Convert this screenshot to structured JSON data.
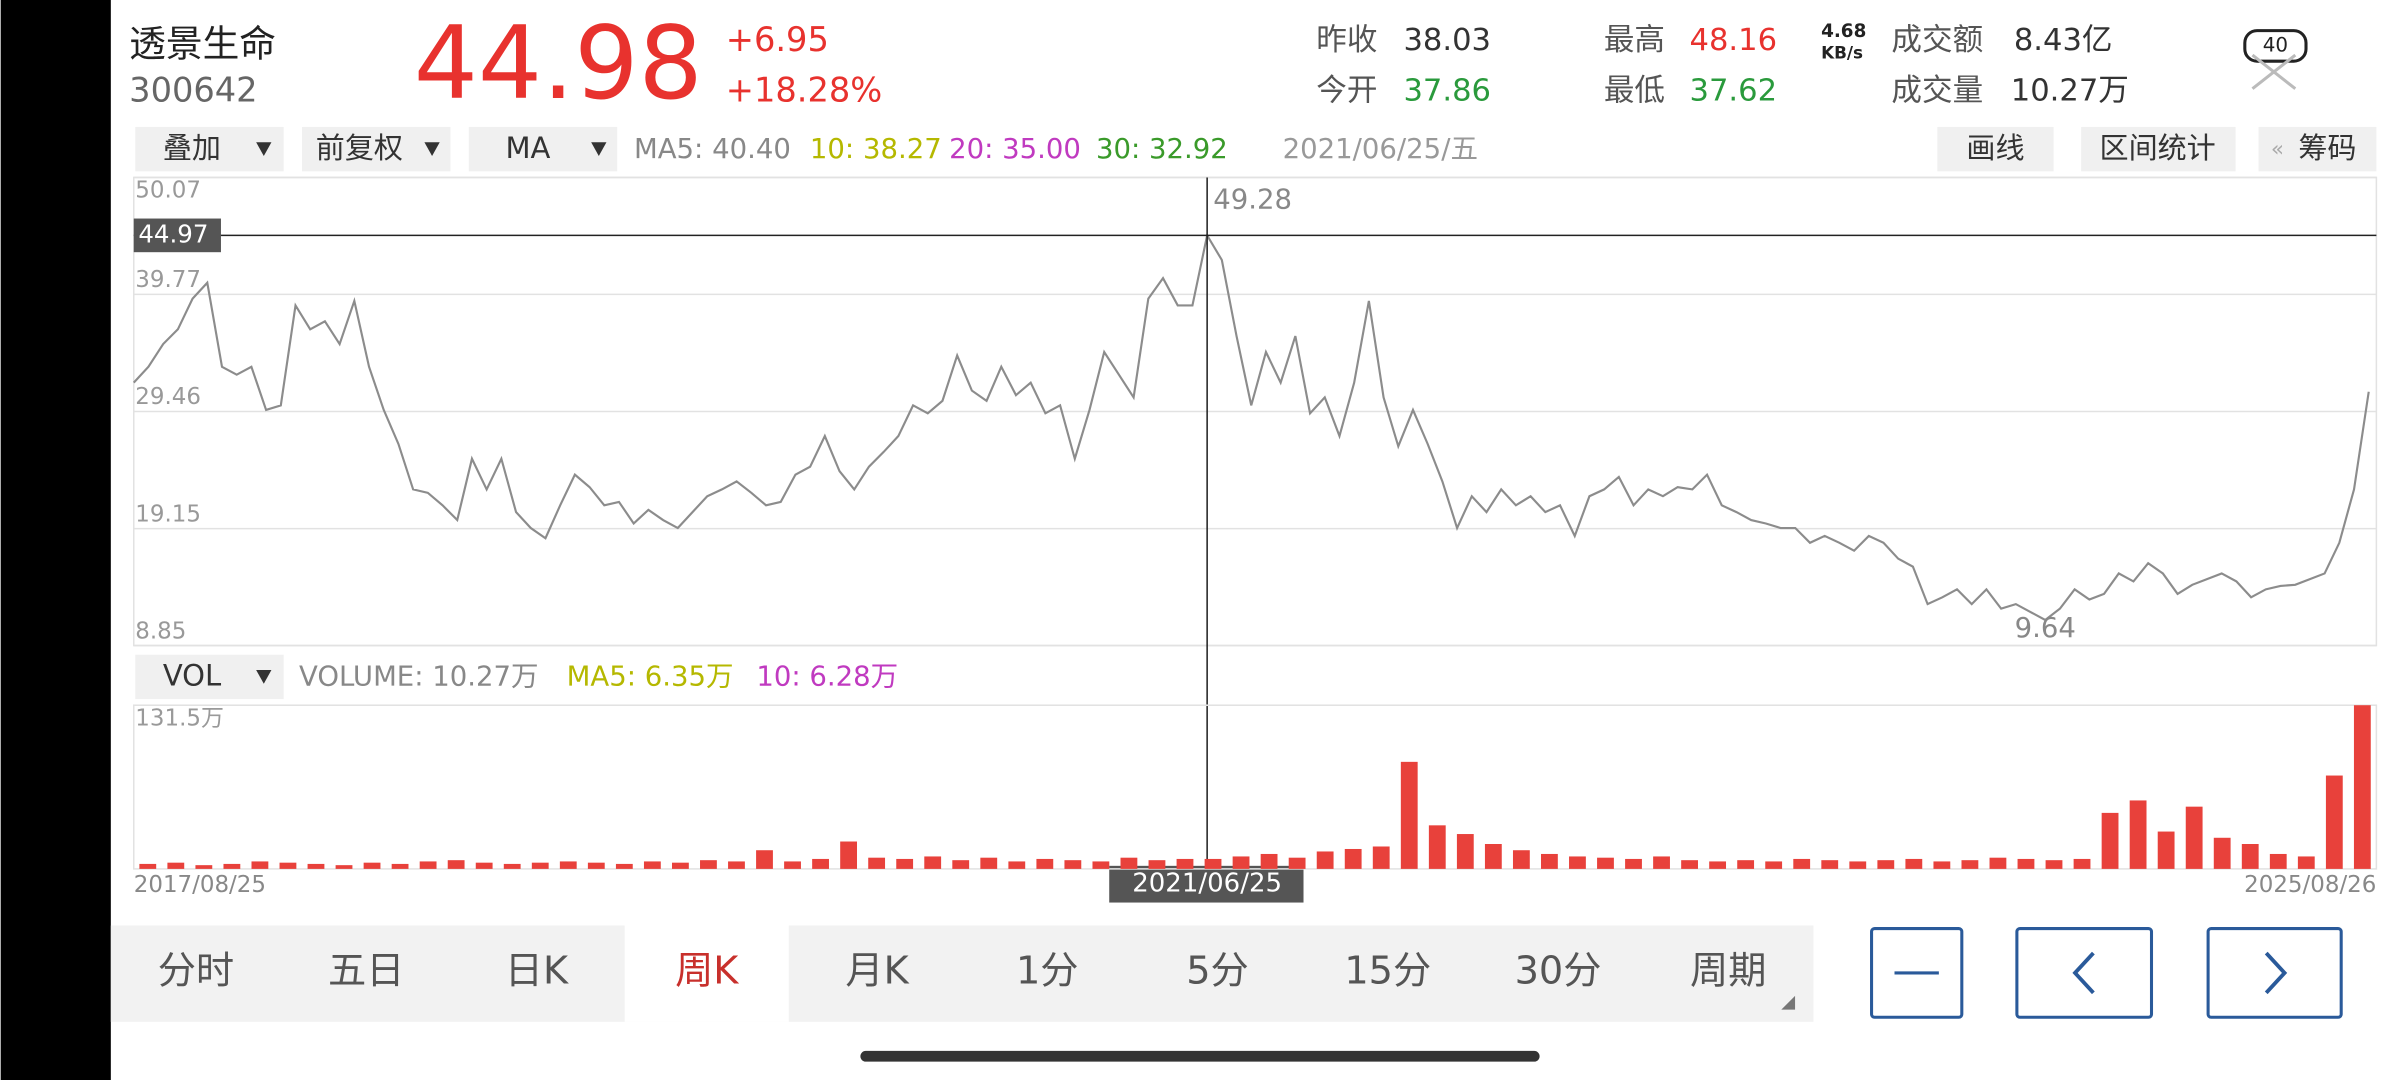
{
  "status_bar": {
    "speed": "4.68",
    "speed_unit": "KB/s",
    "battery": "40"
  },
  "header": {
    "name": "透景生命",
    "code": "300642",
    "price": "44.98",
    "change": "+6.95",
    "change_pct": "+18.28%",
    "stats": [
      {
        "label": "昨收",
        "value": "38.03"
      },
      {
        "label": "今开",
        "value": "37.86"
      },
      {
        "label": "最高",
        "value": "48.16"
      },
      {
        "label": "最低",
        "value": "37.62"
      },
      {
        "label": "成交额",
        "value": "8.43亿"
      },
      {
        "label": "成交量",
        "value": "10.27万"
      }
    ]
  },
  "toolbar": {
    "overlay": "叠加",
    "adjust": "前复权",
    "indicator": "MA",
    "ma": [
      "MA5: 40.40",
      "10: 38.27",
      "20: 35.00",
      "30: 32.92"
    ],
    "date": "2021/06/25/五",
    "buttons": [
      "画线",
      "区间统计",
      "筹码"
    ]
  },
  "chart_data": [
    {
      "type": "line",
      "ylim": [
        8.85,
        50.07
      ],
      "yticks": [
        8.85,
        19.15,
        29.46,
        39.77,
        50.07
      ],
      "grid": true,
      "color": "#8c8c8c",
      "crosshair_value": 44.97,
      "high_label": "49.28",
      "low_label": "9.64",
      "values": [
        32.0,
        33.4,
        35.4,
        36.7,
        39.4,
        40.8,
        33.4,
        32.7,
        33.4,
        29.6,
        30.0,
        38.8,
        36.7,
        37.4,
        35.4,
        39.2,
        33.4,
        29.6,
        26.6,
        22.6,
        22.3,
        21.2,
        19.9,
        25.3,
        22.6,
        25.3,
        20.6,
        19.2,
        18.3,
        21.2,
        23.9,
        22.8,
        21.2,
        21.5,
        19.6,
        20.8,
        19.9,
        19.2,
        20.6,
        22.0,
        22.6,
        23.3,
        22.3,
        21.2,
        21.5,
        23.9,
        24.6,
        27.3,
        24.2,
        22.6,
        24.6,
        25.9,
        27.3,
        30.0,
        29.3,
        30.4,
        34.4,
        31.3,
        30.4,
        33.4,
        30.9,
        32.0,
        29.3,
        30.0,
        25.3,
        29.6,
        34.7,
        32.7,
        30.7,
        39.4,
        41.2,
        38.8,
        38.8,
        44.97,
        42.8,
        36.1,
        30.0,
        34.7,
        32.0,
        36.1,
        29.3,
        30.7,
        27.3,
        32.0,
        39.2,
        30.7,
        26.4,
        29.6,
        26.6,
        23.3,
        19.2,
        22.0,
        20.6,
        22.6,
        21.2,
        22.0,
        20.6,
        21.2,
        18.5,
        22.0,
        22.6,
        23.7,
        21.2,
        22.6,
        22.0,
        22.8,
        22.6,
        23.9,
        21.2,
        20.6,
        19.9,
        19.6,
        19.2,
        19.2,
        17.9,
        18.5,
        17.9,
        17.2,
        18.5,
        17.9,
        16.5,
        15.8,
        12.5,
        13.1,
        13.8,
        12.5,
        13.8,
        12.1,
        12.5,
        11.8,
        11.1,
        12.1,
        13.8,
        12.9,
        13.4,
        15.2,
        14.5,
        16.1,
        15.2,
        13.4,
        14.2,
        14.7,
        15.2,
        14.5,
        13.1,
        13.8,
        14.1,
        14.2,
        14.7,
        15.2,
        17.9,
        22.6,
        31.2
      ]
    },
    {
      "type": "bar",
      "ylim": [
        0,
        131.5
      ],
      "yticks": [
        {
          "value": 131.5,
          "label": "131.5万"
        }
      ],
      "color": "#e8413b",
      "values": [
        4,
        5,
        3,
        4,
        6,
        5,
        4,
        3,
        5,
        4,
        6,
        7,
        5,
        4,
        5,
        6,
        5,
        4,
        6,
        5,
        7,
        6,
        15,
        6,
        8,
        22,
        9,
        8,
        10,
        7,
        9,
        6,
        8,
        7,
        6,
        9,
        7,
        8,
        8,
        10,
        12,
        9,
        14,
        16,
        18,
        86,
        35,
        28,
        20,
        15,
        12,
        10,
        9,
        8,
        10,
        7,
        6,
        7,
        6,
        8,
        7,
        6,
        7,
        8,
        6,
        7,
        9,
        8,
        7,
        8,
        45,
        55,
        30,
        50,
        25,
        20,
        12,
        10,
        75,
        131.5
      ]
    }
  ],
  "volume_bar": {
    "indicator": "VOL",
    "volume": "VOLUME: 10.27万",
    "ma5": "MA5: 6.35万",
    "ma10": "10: 6.28万"
  },
  "x_labels": {
    "start": "2017/08/25",
    "cursor": "2021/06/25",
    "end": "2025/08/26"
  },
  "tabs": [
    "分时",
    "五日",
    "日K",
    "周K",
    "月K",
    "1分",
    "5分",
    "15分",
    "30分",
    "周期"
  ],
  "active_tab": 3
}
